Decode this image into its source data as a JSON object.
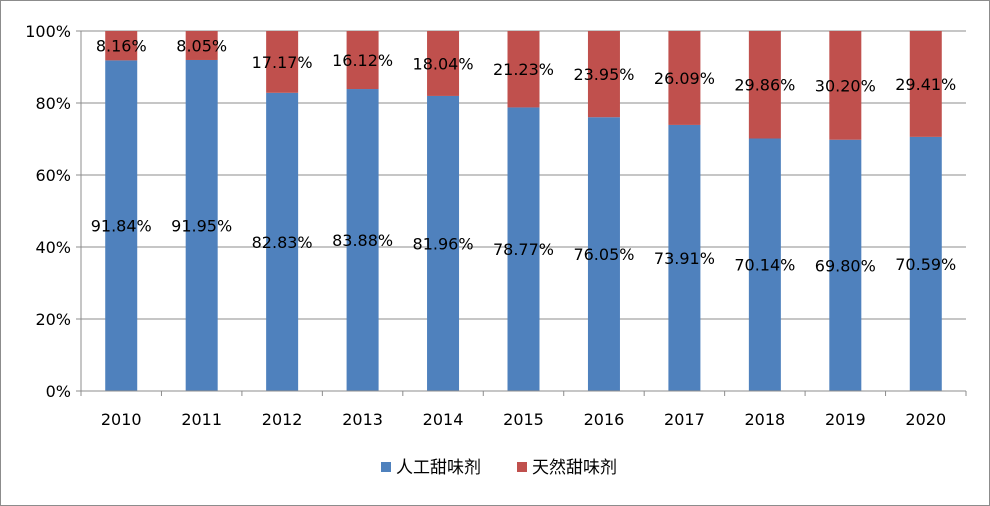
{
  "chart_data": {
    "type": "bar",
    "stacked": true,
    "percent_stacked": true,
    "categories": [
      "2010",
      "2011",
      "2012",
      "2013",
      "2014",
      "2015",
      "2016",
      "2017",
      "2018",
      "2019",
      "2020"
    ],
    "series": [
      {
        "name": "人工甜味剂",
        "color": "#4f81bd",
        "values": [
          91.84,
          91.95,
          82.83,
          83.88,
          81.96,
          78.77,
          76.05,
          73.91,
          70.14,
          69.8,
          70.59
        ],
        "labels": [
          "91.84%",
          "91.95%",
          "82.83%",
          "83.88%",
          "81.96%",
          "78.77%",
          "76.05%",
          "73.91%",
          "70.14%",
          "69.80%",
          "70.59%"
        ]
      },
      {
        "name": "天然甜味剂",
        "color": "#c0504d",
        "values": [
          8.16,
          8.05,
          17.17,
          16.12,
          18.04,
          21.23,
          23.95,
          26.09,
          29.86,
          30.2,
          29.41
        ],
        "labels": [
          "8.16%",
          "8.05%",
          "17.17%",
          "16.12%",
          "18.04%",
          "21.23%",
          "23.95%",
          "26.09%",
          "29.86%",
          "30.20%",
          "29.41%"
        ]
      }
    ],
    "ylim": [
      0,
      100
    ],
    "y_ticks": [
      "0%",
      "20%",
      "40%",
      "60%",
      "80%",
      "100%"
    ],
    "grid": true,
    "legend_position": "bottom"
  }
}
